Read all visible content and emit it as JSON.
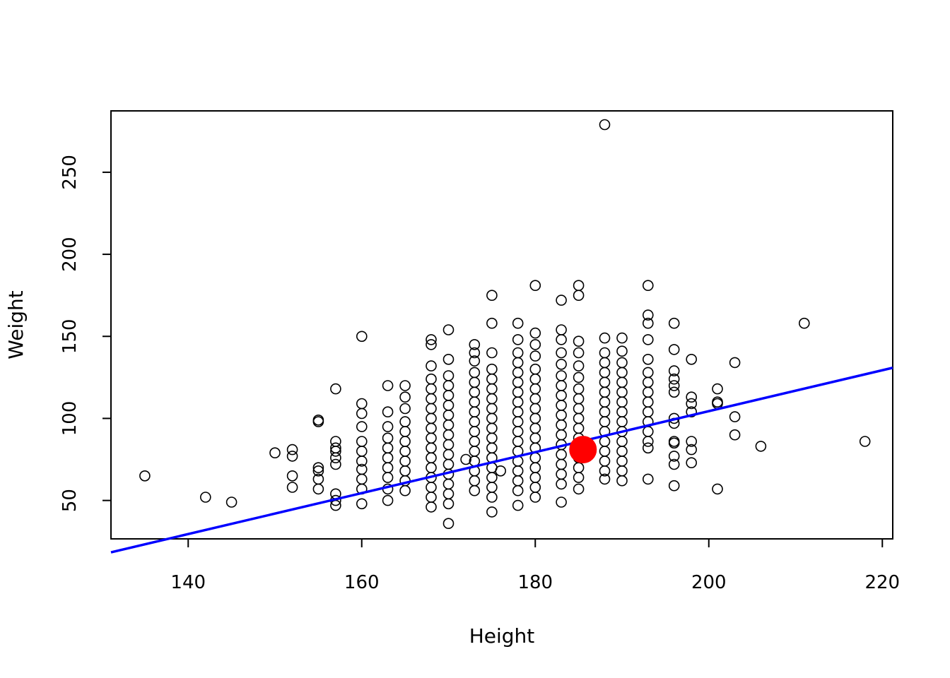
{
  "chart_data": {
    "type": "scatter",
    "title": "",
    "xlabel": "Height",
    "ylabel": "Weight",
    "xlim": [
      131.1,
      221.2
    ],
    "ylim": [
      26.6,
      287.4
    ],
    "x_ticks": [
      140,
      160,
      180,
      200,
      220
    ],
    "y_ticks": [
      50,
      100,
      150,
      200,
      250
    ],
    "grid": false,
    "legend": "none",
    "colors": {
      "points": "#000000",
      "highlight": "#ff0000",
      "line": "#0000ff"
    },
    "regression_line": {
      "intercept": -145.2,
      "slope": 1.248
    },
    "highlight_point": {
      "x": 185.5,
      "y": 81
    },
    "series": [
      {
        "marker": "open-circle",
        "columns": [
          {
            "x": 168,
            "ys": [
              46,
              52,
              58,
              64,
              70,
              76,
              82,
              88,
              94,
              100,
              106,
              112,
              118,
              124,
              132,
              145,
              148
            ]
          },
          {
            "x": 170,
            "ys": [
              36,
              48,
              54,
              60,
              66,
              72,
              78,
              84,
              90,
              96,
              102,
              108,
              114,
              120,
              126,
              136,
              154
            ]
          },
          {
            "x": 173,
            "ys": [
              56,
              62,
              68,
              74,
              80,
              86,
              92,
              98,
              104,
              110,
              116,
              122,
              128,
              135,
              140,
              145
            ]
          },
          {
            "x": 175,
            "ys": [
              43,
              52,
              58,
              64,
              70,
              76,
              82,
              88,
              94,
              100,
              106,
              112,
              118,
              124,
              130,
              140,
              158,
              175
            ]
          },
          {
            "x": 178,
            "ys": [
              47,
              56,
              62,
              68,
              74,
              80,
              86,
              92,
              98,
              104,
              110,
              116,
              122,
              128,
              134,
              140,
              148,
              158
            ]
          },
          {
            "x": 180,
            "ys": [
              52,
              58,
              64,
              70,
              76,
              82,
              88,
              94,
              100,
              106,
              112,
              118,
              124,
              130,
              138,
              145,
              152,
              181
            ]
          },
          {
            "x": 183,
            "ys": [
              49,
              60,
              66,
              72,
              78,
              84,
              90,
              96,
              102,
              108,
              114,
              120,
              126,
              133,
              140,
              148,
              154,
              172
            ]
          },
          {
            "x": 185,
            "ys": [
              57,
              64,
              70,
              76,
              82,
              88,
              94,
              100,
              106,
              112,
              118,
              125,
              132,
              140,
              147,
              175,
              181
            ]
          },
          {
            "x": 188,
            "ys": [
              63,
              68,
              74,
              80,
              86,
              92,
              98,
              104,
              110,
              116,
              122,
              128,
              134,
              140,
              149,
              279
            ]
          },
          {
            "x": 190,
            "ys": [
              62,
              68,
              74,
              80,
              86,
              92,
              98,
              104,
              110,
              116,
              122,
              128,
              134,
              141,
              149
            ]
          },
          {
            "x": 193,
            "ys": [
              63,
              82,
              86,
              92,
              98,
              104,
              110,
              116,
              122,
              128,
              136,
              148,
              158,
              163,
              181
            ]
          },
          {
            "x": 165,
            "ys": [
              56,
              62,
              68,
              74,
              80,
              86,
              92,
              98,
              106,
              113,
              120
            ]
          },
          {
            "x": 163,
            "ys": [
              50,
              57,
              64,
              70,
              76,
              82,
              88,
              95,
              104,
              120
            ]
          },
          {
            "x": 160,
            "ys": [
              48,
              57,
              63,
              69,
              74,
              80,
              86,
              95,
              103,
              109,
              150
            ]
          },
          {
            "x": 157,
            "ys": [
              47,
              50,
              54,
              72,
              76,
              80,
              82,
              86,
              118
            ]
          },
          {
            "x": 155,
            "ys": [
              57,
              63,
              68,
              70,
              98,
              99
            ]
          },
          {
            "x": 152,
            "ys": [
              58,
              65,
              77,
              81
            ]
          },
          {
            "x": 196,
            "ys": [
              59,
              72,
              77,
              85,
              86,
              97,
              100,
              116,
              120,
              124,
              129,
              142,
              158
            ]
          },
          {
            "x": 198,
            "ys": [
              73,
              81,
              86,
              104,
              109,
              113,
              136
            ]
          },
          {
            "x": 201,
            "ys": [
              57,
              109,
              110,
              118
            ]
          },
          {
            "x": 203,
            "ys": [
              90,
              101,
              134
            ]
          },
          {
            "x": 135,
            "ys": [
              65
            ]
          },
          {
            "x": 142,
            "ys": [
              52
            ]
          },
          {
            "x": 145,
            "ys": [
              49
            ]
          },
          {
            "x": 150,
            "ys": [
              79
            ]
          },
          {
            "x": 172,
            "ys": [
              75
            ]
          },
          {
            "x": 176,
            "ys": [
              68
            ]
          },
          {
            "x": 206,
            "ys": [
              83
            ]
          },
          {
            "x": 211,
            "ys": [
              158
            ]
          },
          {
            "x": 218,
            "ys": [
              86
            ]
          }
        ]
      }
    ]
  }
}
